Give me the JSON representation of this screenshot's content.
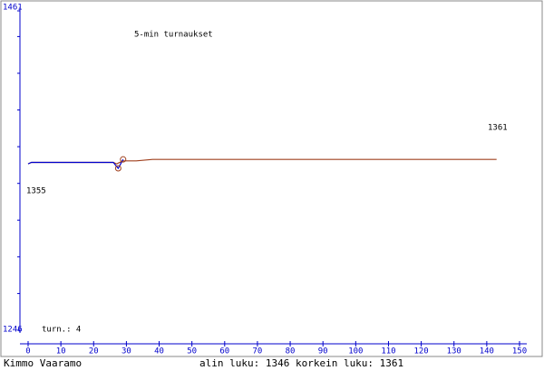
{
  "chart_data": {
    "type": "line",
    "title": "5-min turnaukset",
    "note": "turn.: 4",
    "annotations": [
      "1355",
      "1361"
    ],
    "footer_left": "Kimmo Vaaramo",
    "footer_center": "alin luku: 1346  korkein luku: 1361",
    "axis_color": "#0000cc",
    "xlim": [
      0,
      150
    ],
    "xticks": [
      0,
      10,
      20,
      30,
      40,
      50,
      60,
      70,
      80,
      90,
      100,
      110,
      120,
      130,
      140,
      150
    ],
    "ylim": [
      1246,
      1461
    ],
    "yticks": [
      1246,
      1461
    ],
    "series": [
      {
        "color": "#a0401e",
        "x": [
          0,
          1,
          9,
          26,
          27,
          28,
          29,
          33,
          38,
          143
        ],
        "values": [
          1358,
          1359,
          1359,
          1359,
          1358,
          1359,
          1360,
          1360,
          1361,
          1361
        ]
      },
      {
        "color": "#0000cc",
        "x": [
          0,
          1,
          9,
          26,
          27.5,
          29
        ],
        "values": [
          1358,
          1359,
          1359,
          1359,
          1355,
          1361
        ]
      },
      {
        "color": "#a0401e",
        "marker": "circle",
        "x": [
          27.5,
          29
        ],
        "values": [
          1355,
          1361
        ]
      }
    ]
  }
}
